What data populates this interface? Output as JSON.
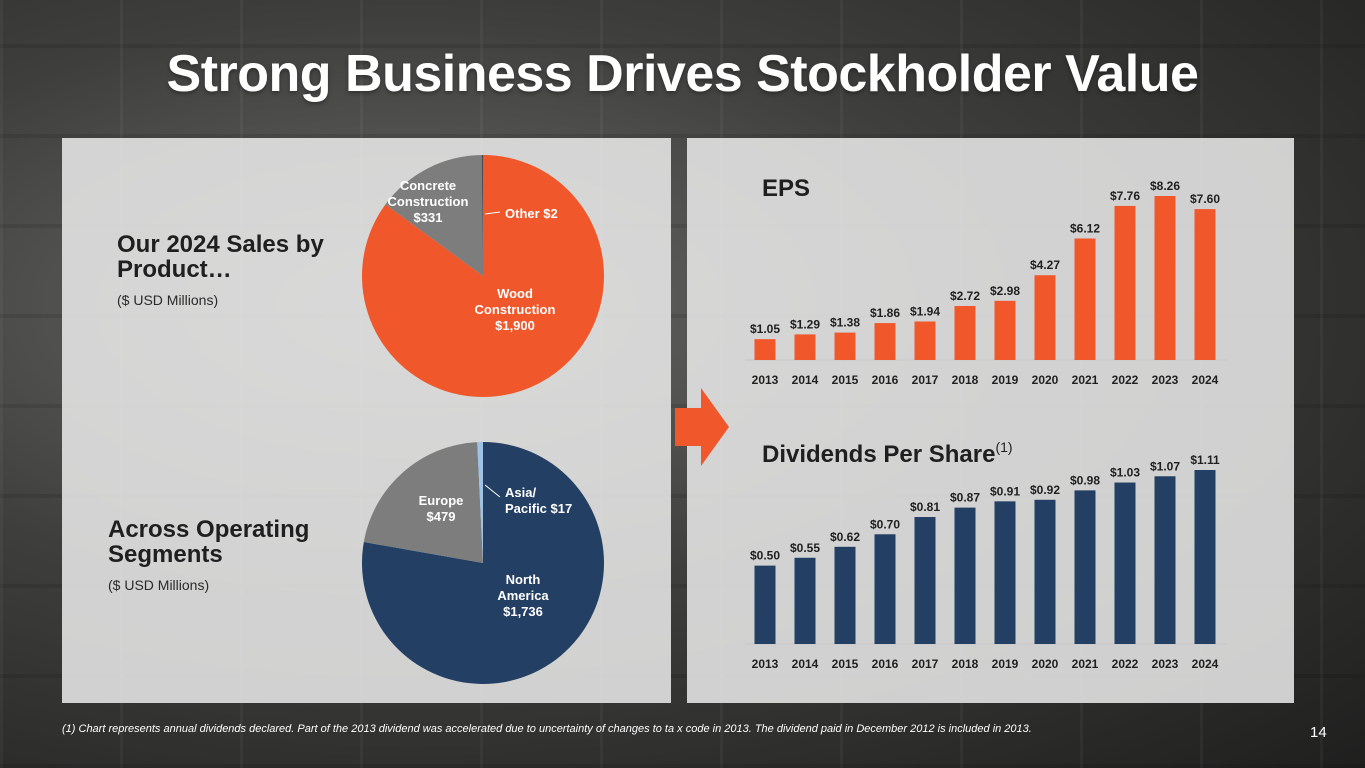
{
  "title": "Strong Business Drives Stockholder Value",
  "colors": {
    "orange": "#f0572a",
    "navy": "#233f64",
    "gray": "#7d7d7d",
    "lightblue": "#9ec3e6",
    "dark": "#1f1f1f"
  },
  "left": {
    "product_heading_line1": "Our 2024 Sales by",
    "product_heading_line2": "Product…",
    "product_sub": "($ USD Millions)",
    "segment_heading_line1": "Across Operating",
    "segment_heading_line2": "Segments",
    "segment_sub": "($ USD Millions)"
  },
  "chart_data": [
    {
      "type": "pie",
      "title": "Our 2024 Sales by Product…",
      "unit": "$ USD Millions",
      "slices": [
        {
          "name": "Wood Construction",
          "value": 1900,
          "label_lines": [
            "Wood",
            "Construction",
            "$1,900"
          ],
          "color": "#f0572a"
        },
        {
          "name": "Concrete Construction",
          "value": 331,
          "label_lines": [
            "Concrete",
            "Construction",
            "$331"
          ],
          "color": "#7d7d7d"
        },
        {
          "name": "Other",
          "value": 2,
          "label_lines": [
            "Other $2"
          ],
          "color": "#1f1f1f"
        }
      ]
    },
    {
      "type": "pie",
      "title": "Across Operating Segments",
      "unit": "$ USD Millions",
      "slices": [
        {
          "name": "North America",
          "value": 1736,
          "label_lines": [
            "North",
            "America",
            "$1,736"
          ],
          "color": "#233f64"
        },
        {
          "name": "Europe",
          "value": 479,
          "label_lines": [
            "Europe",
            "$479"
          ],
          "color": "#7d7d7d"
        },
        {
          "name": "Asia/Pacific",
          "value": 17,
          "label_lines": [
            "Asia/",
            "Pacific $17"
          ],
          "color": "#9ec3e6"
        }
      ]
    },
    {
      "type": "bar",
      "title": "EPS",
      "categories": [
        "2013",
        "2014",
        "2015",
        "2016",
        "2017",
        "2018",
        "2019",
        "2020",
        "2021",
        "2022",
        "2023",
        "2024"
      ],
      "values": [
        1.05,
        1.29,
        1.38,
        1.86,
        1.94,
        2.72,
        2.98,
        4.27,
        6.12,
        7.76,
        8.26,
        7.6
      ],
      "labels": [
        "$1.05",
        "$1.29",
        "$1.38",
        "$1.86",
        "$1.94",
        "$2.72",
        "$2.98",
        "$4.27",
        "$6.12",
        "$7.76",
        "$8.26",
        "$7.60"
      ],
      "ylim": [
        0,
        8.26
      ],
      "color": "#f0572a"
    },
    {
      "type": "bar",
      "title": "Dividends Per Share",
      "title_sup": "(1)",
      "categories": [
        "2013",
        "2014",
        "2015",
        "2016",
        "2017",
        "2018",
        "2019",
        "2020",
        "2021",
        "2022",
        "2023",
        "2024"
      ],
      "values": [
        0.5,
        0.55,
        0.62,
        0.7,
        0.81,
        0.87,
        0.91,
        0.92,
        0.98,
        1.03,
        1.07,
        1.11
      ],
      "labels": [
        "$0.50",
        "$0.55",
        "$0.62",
        "$0.70",
        "$0.81",
        "$0.87",
        "$0.91",
        "$0.92",
        "$0.98",
        "$1.03",
        "$1.07",
        "$1.11"
      ],
      "ylim": [
        0,
        1.11
      ],
      "color": "#233f64"
    }
  ],
  "footnote": "(1) Chart represents annual dividends declared. Part of the 2013 dividend was accelerated due to uncertainty of changes to ta x code in 2013. The dividend paid in December 2012 is included in 2013.",
  "page_number": "14"
}
